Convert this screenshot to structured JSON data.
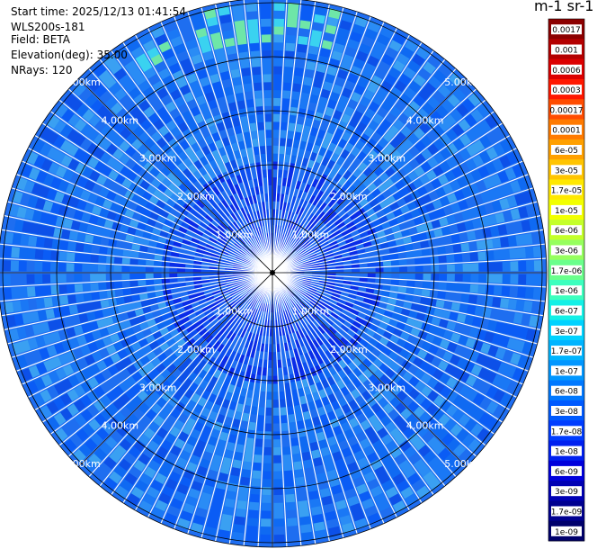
{
  "info": {
    "start_time": "Start time: 2025/12/13 01:41:54",
    "device": "WLS200s-181",
    "field": "Field: BETA",
    "elevation": "Elevation(deg): 35.00",
    "nrays": "NRays: 120"
  },
  "colorbar": {
    "units_label": "m-1 sr-1",
    "labels": [
      "0.0017",
      "0.001",
      "0.0006",
      "0.0003",
      "0.00017",
      "0.0001",
      "6e-05",
      "3e-05",
      "1.7e-05",
      "1e-05",
      "6e-06",
      "3e-06",
      "1.7e-06",
      "1e-06",
      "6e-07",
      "3e-07",
      "1.7e-07",
      "1e-07",
      "6e-08",
      "3e-08",
      "1.7e-08",
      "1e-08",
      "6e-09",
      "3e-09",
      "1.7e-09",
      "1e-09"
    ],
    "colors": [
      "#8c0000",
      "#b40000",
      "#dc0000",
      "#ff1800",
      "#ff4c00",
      "#ff7a00",
      "#ffa000",
      "#ffc400",
      "#ffe800",
      "#f2ff00",
      "#c4ff2a",
      "#96ff5e",
      "#6aff8c",
      "#3cffbe",
      "#14f0e6",
      "#00d2ff",
      "#00b4ff",
      "#0096ff",
      "#0078ff",
      "#005aff",
      "#003cff",
      "#0020f0",
      "#0000dc",
      "#0000b4",
      "#000090",
      "#00006c"
    ]
  },
  "chart_data": {
    "type": "heatmap",
    "projection": "polar PPI",
    "field": "BETA",
    "elevation_deg": 35.0,
    "n_rays": 120,
    "range_rings_km": [
      1.0,
      2.0,
      3.0,
      4.0,
      5.0
    ],
    "range_ring_labels": [
      "1.00km",
      "2.00km",
      "3.00km",
      "4.00km",
      "5.00km"
    ],
    "max_range_km": 5.0,
    "dominant_value": "3e-08",
    "value_range": [
      "1e-09",
      "1.7e-06"
    ],
    "color_scale": "log"
  }
}
